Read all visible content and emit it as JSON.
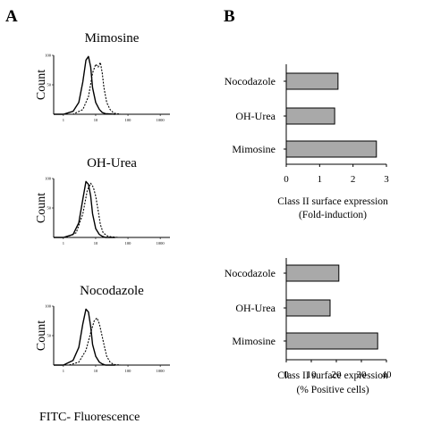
{
  "panels": {
    "a_letter": "A",
    "b_letter": "B",
    "a_xlabel": "FITC- Fluorescence",
    "count_label": "Count"
  },
  "chart_data": [
    {
      "type": "histogram",
      "panel": "A",
      "title": "Mimosine",
      "ylabel": "Count",
      "x_scale": "log",
      "x_ticks": [
        "1",
        "10",
        "100",
        "1000"
      ],
      "y_ticks": [
        "100",
        "50"
      ],
      "series": [
        {
          "name": "",
          "style": "solid",
          "x": [
            0.5,
            1,
            2,
            3,
            4,
            5,
            6,
            7,
            8,
            10,
            13,
            16,
            20,
            40
          ],
          "y": [
            0,
            0,
            5,
            20,
            55,
            92,
            98,
            80,
            45,
            20,
            8,
            3,
            1,
            0
          ]
        },
        {
          "name": "",
          "style": "dashed",
          "x": [
            0.5,
            2,
            4,
            6,
            8,
            10,
            12,
            14,
            16,
            18,
            22,
            28,
            36,
            60
          ],
          "y": [
            0,
            0,
            8,
            30,
            70,
            85,
            80,
            88,
            70,
            45,
            20,
            8,
            2,
            0
          ]
        }
      ]
    },
    {
      "type": "histogram",
      "panel": "A",
      "title": "OH-Urea",
      "ylabel": "Count",
      "x_scale": "log",
      "x_ticks": [
        "1",
        "10",
        "100",
        "1000"
      ],
      "y_ticks": [
        "100",
        "50"
      ],
      "series": [
        {
          "name": "",
          "style": "solid",
          "x": [
            0.5,
            1,
            2,
            3,
            4,
            5,
            6,
            7,
            8,
            10,
            13,
            16,
            20,
            40
          ],
          "y": [
            0,
            0,
            5,
            25,
            65,
            95,
            90,
            70,
            40,
            15,
            5,
            2,
            0,
            0
          ]
        },
        {
          "name": "",
          "style": "dashed",
          "x": [
            0.5,
            1.2,
            2.5,
            4,
            5.5,
            7,
            8.5,
            10,
            12,
            14,
            17,
            22,
            30,
            50
          ],
          "y": [
            0,
            0,
            8,
            40,
            80,
            92,
            85,
            70,
            45,
            22,
            8,
            3,
            1,
            0
          ]
        }
      ]
    },
    {
      "type": "histogram",
      "panel": "A",
      "title": "Nocodazole",
      "ylabel": "Count",
      "x_scale": "log",
      "x_ticks": [
        "1",
        "10",
        "100",
        "1000"
      ],
      "y_ticks": [
        "100",
        "50"
      ],
      "series": [
        {
          "name": "",
          "style": "solid",
          "x": [
            0.5,
            1,
            2,
            3,
            4,
            5,
            6,
            7,
            8,
            10,
            13,
            16,
            20,
            40
          ],
          "y": [
            0,
            0,
            8,
            30,
            70,
            95,
            90,
            65,
            35,
            15,
            5,
            2,
            0,
            0
          ]
        },
        {
          "name": "",
          "style": "dashed",
          "x": [
            0.5,
            1.5,
            3,
            5,
            7,
            9,
            11,
            13,
            15,
            18,
            22,
            28,
            36,
            60
          ],
          "y": [
            0,
            0,
            5,
            25,
            55,
            75,
            80,
            70,
            55,
            35,
            15,
            5,
            1,
            0
          ]
        }
      ]
    },
    {
      "type": "bar",
      "orientation": "horizontal",
      "panel": "B",
      "categories": [
        "Nocodazole",
        "OH-Urea",
        "Mimosine"
      ],
      "values": [
        1.55,
        1.45,
        2.7
      ],
      "xlim": [
        0,
        3
      ],
      "x_ticks": [
        0,
        1,
        2,
        3
      ],
      "xlabel": "Class II surface expression\n(Fold-induction)",
      "bar_color": "#a9a9a9"
    },
    {
      "type": "bar",
      "orientation": "horizontal",
      "panel": "B",
      "categories": [
        "Nocodazole",
        "OH-Urea",
        "Mimosine"
      ],
      "values": [
        21,
        17.5,
        36.5
      ],
      "xlim": [
        0,
        40
      ],
      "x_ticks": [
        0,
        10,
        20,
        30,
        40
      ],
      "xlabel": "Class II surface expression\n(% Positive cells)",
      "bar_color": "#a9a9a9"
    }
  ]
}
